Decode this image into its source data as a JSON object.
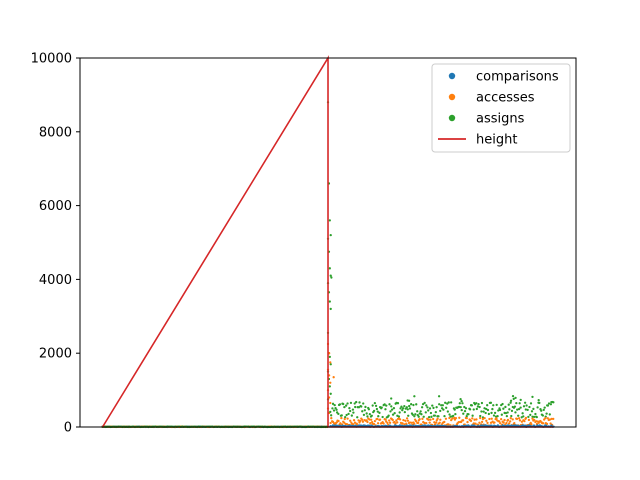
{
  "chart_data": {
    "type": "scatter",
    "title": "",
    "xlabel": "",
    "ylabel": "",
    "ylim": [
      0,
      10000
    ],
    "xlim": [
      -1000,
      20999
    ],
    "y_ticks": [
      "0",
      "2000",
      "4000",
      "6000",
      "8000",
      "10000"
    ],
    "show_x_ticks": false,
    "grid": false,
    "legend_position": "top-right",
    "series": [
      {
        "name": "comparisons",
        "kind": "scatter",
        "color": "#1f77b4",
        "description": "near zero for first half of indices, small values (≈0-50) after midpoint"
      },
      {
        "name": "accesses",
        "kind": "scatter",
        "color": "#ff7f0e",
        "description": "near zero until midpoint; spike to ~2000 at midpoint; then ≈50-250"
      },
      {
        "name": "assigns",
        "kind": "scatter",
        "color": "#2ca02c",
        "description": "near zero until midpoint; spike up to ~8800 at midpoint; then ≈250-750"
      },
      {
        "name": "height",
        "kind": "line",
        "color": "#d62728",
        "points": [
          [
            0,
            0
          ],
          [
            10000,
            10000
          ],
          [
            10000,
            0
          ],
          [
            20000,
            0
          ]
        ]
      }
    ]
  }
}
